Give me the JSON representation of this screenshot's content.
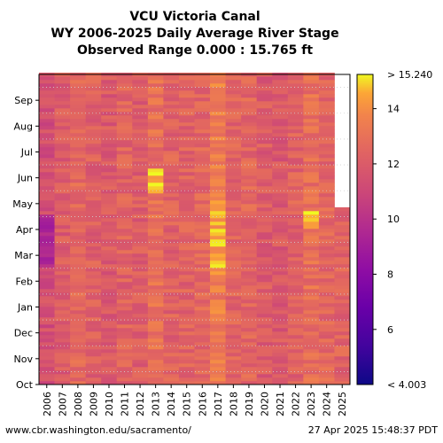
{
  "chart_data": {
    "type": "heatmap",
    "title_lines": [
      "VCU Victoria Canal",
      "WY 2006-2025 Daily Average River Stage",
      "Observed Range 0.000 : 15.765 ft"
    ],
    "x_categories": [
      "2006",
      "2007",
      "2008",
      "2009",
      "2010",
      "2011",
      "2012",
      "2013",
      "2014",
      "2015",
      "2016",
      "2017",
      "2018",
      "2019",
      "2020",
      "2021",
      "2022",
      "2023",
      "2024",
      "2025"
    ],
    "y_months": [
      "Oct",
      "Nov",
      "Dec",
      "Jan",
      "Feb",
      "Mar",
      "Apr",
      "May",
      "Jun",
      "Jul",
      "Aug",
      "Sep"
    ],
    "colorbar": {
      "colormap": "plasma",
      "min": 4.003,
      "max": 15.24,
      "ticks": [
        6,
        8,
        10,
        12,
        14
      ],
      "label_top": "> 15.240",
      "label_bottom": "< 4.003"
    },
    "typical_stage_by_year_ft": [
      11.4,
      12.0,
      12.6,
      12.2,
      11.9,
      12.3,
      12.1,
      12.9,
      12.3,
      12.3,
      12.5,
      13.4,
      12.4,
      12.5,
      12.0,
      11.9,
      12.3,
      12.9,
      12.5,
      12.4
    ],
    "grid": "dotted",
    "gaps": "missing data shown white"
  },
  "footer": {
    "source": "www.cbr.washington.edu/sacramento/",
    "timestamp": "27 Apr 2025 15:48:37 PDT"
  }
}
